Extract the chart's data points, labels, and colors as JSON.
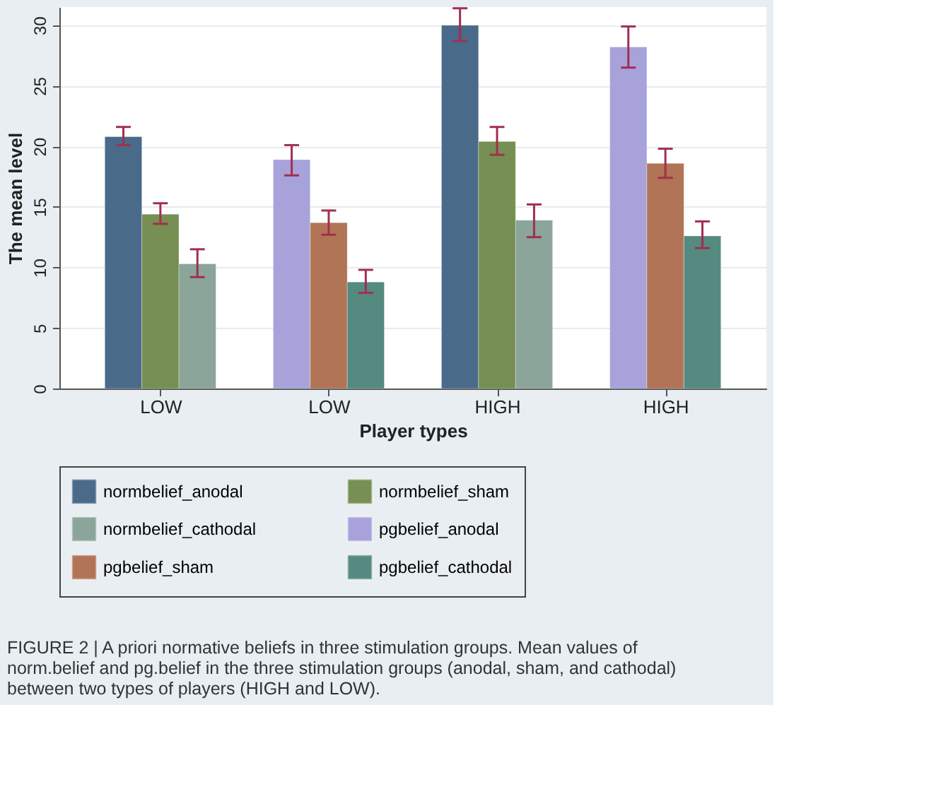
{
  "chart_data": {
    "type": "bar",
    "xlabel": "Player types",
    "ylabel": "The mean level",
    "categories": [
      "LOW",
      "LOW",
      "HIGH",
      "HIGH"
    ],
    "series": [
      {
        "name": "normbelief_anodal",
        "color": "#4a6a8a",
        "values": [
          20.8,
          null,
          30.0,
          null
        ],
        "errors": [
          [
            20.1,
            21.6
          ],
          null,
          [
            28.7,
            31.4
          ],
          null
        ]
      },
      {
        "name": "normbelief_sham",
        "color": "#768f52",
        "values": [
          14.4,
          null,
          20.4,
          null
        ],
        "errors": [
          [
            13.6,
            15.3
          ],
          null,
          [
            19.3,
            21.6
          ],
          null
        ]
      },
      {
        "name": "normbelief_cathodal",
        "color": "#8ba59a",
        "values": [
          10.3,
          null,
          13.9,
          null
        ],
        "errors": [
          [
            9.2,
            11.5
          ],
          null,
          [
            12.5,
            15.2
          ],
          null
        ]
      },
      {
        "name": "pgbelief_anodal",
        "color": "#a8a2da",
        "values": [
          null,
          18.9,
          null,
          28.2
        ],
        "errors": [
          null,
          [
            17.6,
            20.1
          ],
          null,
          [
            26.5,
            29.9
          ]
        ]
      },
      {
        "name": "pgbelief_sham",
        "color": "#b17456",
        "values": [
          null,
          13.7,
          null,
          18.6
        ],
        "errors": [
          null,
          [
            12.7,
            14.7
          ],
          null,
          [
            17.4,
            19.8
          ]
        ]
      },
      {
        "name": "pgbelief_cathodal",
        "color": "#558a80",
        "values": [
          null,
          8.8,
          null,
          12.6
        ],
        "errors": [
          null,
          [
            7.9,
            9.8
          ],
          null,
          [
            11.6,
            13.8
          ]
        ]
      }
    ],
    "ylim": [
      0,
      31.5
    ],
    "yticks": [
      0,
      5,
      10,
      15,
      20,
      25,
      30
    ],
    "grid": "y",
    "legend": "bottom",
    "annotations": [
      "FIGURE 2 | A priori normative beliefs in three stimulation groups. Mean values of norm.belief and pg.belief in the three stimulation groups (anodal, sham, and cathodal) between two types of players (HIGH and LOW)."
    ]
  }
}
